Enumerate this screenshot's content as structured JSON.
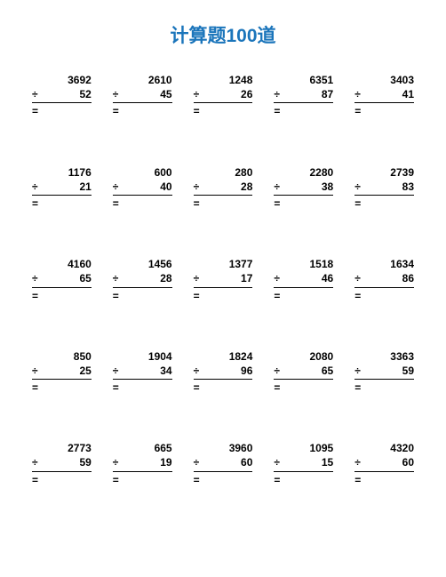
{
  "title": "计算题100道",
  "title_color": "#1b75bb",
  "operator": "÷",
  "equals": "=",
  "background_color": "#ffffff",
  "text_color": "#000000",
  "grid": {
    "cols": 5,
    "rows": 5
  },
  "problems": [
    {
      "dividend": "3692",
      "divisor": "52"
    },
    {
      "dividend": "2610",
      "divisor": "45"
    },
    {
      "dividend": "1248",
      "divisor": "26"
    },
    {
      "dividend": "6351",
      "divisor": "87"
    },
    {
      "dividend": "3403",
      "divisor": "41"
    },
    {
      "dividend": "1176",
      "divisor": "21"
    },
    {
      "dividend": "600",
      "divisor": "40"
    },
    {
      "dividend": "280",
      "divisor": "28"
    },
    {
      "dividend": "2280",
      "divisor": "38"
    },
    {
      "dividend": "2739",
      "divisor": "83"
    },
    {
      "dividend": "4160",
      "divisor": "65"
    },
    {
      "dividend": "1456",
      "divisor": "28"
    },
    {
      "dividend": "1377",
      "divisor": "17"
    },
    {
      "dividend": "1518",
      "divisor": "46"
    },
    {
      "dividend": "1634",
      "divisor": "86"
    },
    {
      "dividend": "850",
      "divisor": "25"
    },
    {
      "dividend": "1904",
      "divisor": "34"
    },
    {
      "dividend": "1824",
      "divisor": "96"
    },
    {
      "dividend": "2080",
      "divisor": "65"
    },
    {
      "dividend": "3363",
      "divisor": "59"
    },
    {
      "dividend": "2773",
      "divisor": "59"
    },
    {
      "dividend": "665",
      "divisor": "19"
    },
    {
      "dividend": "3960",
      "divisor": "60"
    },
    {
      "dividend": "1095",
      "divisor": "15"
    },
    {
      "dividend": "4320",
      "divisor": "60"
    }
  ]
}
